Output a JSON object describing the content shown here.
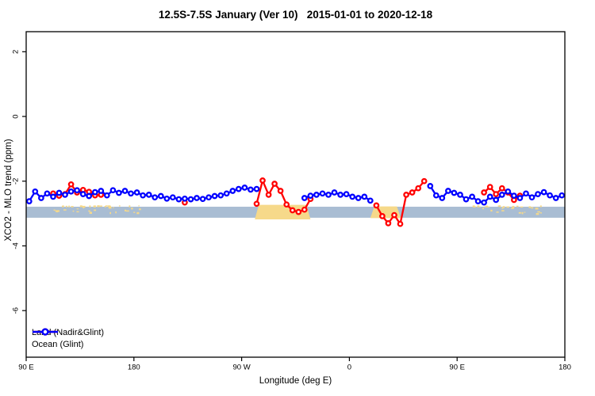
{
  "chart_data": {
    "type": "line",
    "title": "12.5S-7.5S January (Ver 10)   2015-01-01 to 2020-12-18",
    "xlabel": "Longitude (deg E)",
    "ylabel": "XCO2 - MLO trend (ppm)",
    "xlim": [
      90,
      540
    ],
    "ylim": [
      -7.44,
      2.62
    ],
    "grid": false,
    "legend_position": "bottom-left",
    "x_ticks": [
      {
        "value": 90,
        "label": "90 E"
      },
      {
        "value": 180,
        "label": "180"
      },
      {
        "value": 270,
        "label": "90 W"
      },
      {
        "value": 360,
        "label": "0"
      },
      {
        "value": 450,
        "label": "90 E"
      },
      {
        "value": 540,
        "label": "180"
      }
    ],
    "y_ticks": [
      {
        "value": 2,
        "label": "2"
      },
      {
        "value": 0,
        "label": "0"
      },
      {
        "value": -2,
        "label": "-2"
      },
      {
        "value": -4,
        "label": "-4"
      },
      {
        "value": -6,
        "label": "-6"
      }
    ],
    "x_start": 92.5,
    "x_step": 5,
    "series": [
      {
        "name": "Land (Nadir&Glint)",
        "color": "#ff0000",
        "values": [
          null,
          null,
          null,
          null,
          -2.38,
          -2.45,
          -2.4,
          -2.1,
          -2.35,
          -2.27,
          -2.33,
          -2.44,
          -2.42,
          null,
          null,
          null,
          null,
          null,
          null,
          null,
          null,
          null,
          null,
          null,
          null,
          null,
          -2.66,
          null,
          null,
          null,
          null,
          null,
          null,
          null,
          null,
          null,
          null,
          null,
          -2.7,
          -1.98,
          -2.42,
          -2.08,
          -2.3,
          -2.72,
          -2.9,
          -2.95,
          -2.88,
          -2.55,
          null,
          null,
          null,
          null,
          null,
          null,
          null,
          null,
          null,
          null,
          -2.75,
          -3.08,
          -3.3,
          -3.05,
          -3.32,
          -2.42,
          -2.35,
          -2.22,
          -2.0,
          null,
          null,
          null,
          null,
          null,
          null,
          null,
          null,
          null,
          -2.35,
          -2.18,
          -2.4,
          -2.22,
          -2.35,
          -2.58,
          -2.45,
          null,
          null,
          null,
          null,
          null,
          null,
          null
        ]
      },
      {
        "name": "Ocean (Glint)",
        "color": "#0000ff",
        "values": [
          -2.62,
          -2.32,
          -2.52,
          -2.38,
          -2.48,
          -2.36,
          -2.42,
          -2.32,
          -2.28,
          -2.4,
          -2.46,
          -2.34,
          -2.3,
          -2.44,
          -2.28,
          -2.36,
          -2.3,
          -2.38,
          -2.35,
          -2.44,
          -2.42,
          -2.5,
          -2.46,
          -2.54,
          -2.5,
          -2.56,
          -2.54,
          -2.56,
          -2.52,
          -2.55,
          -2.5,
          -2.46,
          -2.44,
          -2.38,
          -2.3,
          -2.24,
          -2.2,
          -2.26,
          -2.24,
          null,
          null,
          null,
          null,
          null,
          null,
          null,
          -2.52,
          -2.45,
          -2.42,
          -2.38,
          -2.42,
          -2.35,
          -2.42,
          -2.4,
          -2.48,
          -2.52,
          -2.48,
          -2.6,
          null,
          null,
          null,
          null,
          null,
          null,
          null,
          null,
          null,
          -2.15,
          -2.44,
          -2.52,
          -2.3,
          -2.36,
          -2.42,
          -2.56,
          -2.48,
          -2.62,
          -2.66,
          -2.48,
          -2.58,
          -2.42,
          -2.32,
          -2.45,
          -2.52,
          -2.38,
          -2.5,
          -2.4,
          -2.34,
          -2.44,
          -2.52,
          -2.44
        ]
      }
    ],
    "ocean_band": {
      "color": "#a9bdd3",
      "y_top": -2.79,
      "y_bottom": -3.13
    },
    "land_band": {
      "color": "#f6d98a",
      "solid_blocks": [
        {
          "from": 281,
          "to": 327.5,
          "y_top": -2.73,
          "y_bottom": -3.18
        },
        {
          "from": 377.5,
          "to": 403,
          "y_top": -2.78,
          "y_bottom": -3.14
        }
      ],
      "speckle_regions": [
        {
          "from": 113,
          "to": 186
        },
        {
          "from": 460,
          "to": 520
        }
      ]
    },
    "marker": "open-circle",
    "frame_color": "#000000"
  },
  "legend": {
    "items": [
      {
        "label": "Land (Nadir&Glint)"
      },
      {
        "label": "Ocean (Glint)"
      }
    ]
  }
}
